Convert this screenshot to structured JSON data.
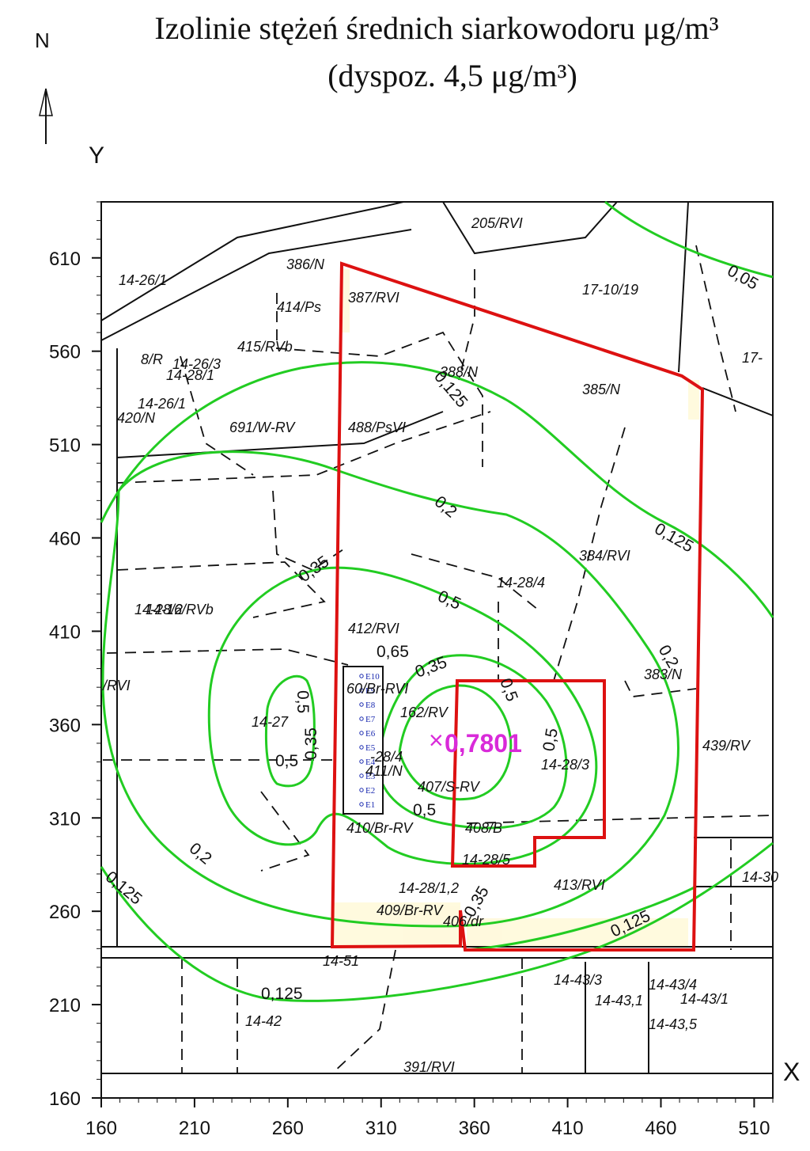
{
  "title": {
    "line1": "Izolinie stężeń średnich siarkowodoru μg/m³",
    "line2": "(dyspoz. 4,5 μg/m³)"
  },
  "north_label": "N",
  "axis": {
    "y_label": "Y",
    "x_label": "X",
    "x_ticks": [
      "160",
      "210",
      "260",
      "310",
      "360",
      "410",
      "460",
      "510"
    ],
    "y_ticks": [
      "610",
      "560",
      "510",
      "460",
      "410",
      "360",
      "310",
      "260",
      "210",
      "160"
    ],
    "x_range": [
      160,
      520
    ],
    "y_range": [
      160,
      640
    ]
  },
  "colors": {
    "isoline": "#22cc22",
    "boundary": "#dd1111",
    "peak": "#d92ad9",
    "emitters": "#1a2ab0"
  },
  "peak": {
    "label": "0,7801",
    "marker": "×",
    "x": 338,
    "y": 352
  },
  "contour_labels": [
    "0,05",
    "0,125",
    "0,2",
    "0,35",
    "0,5",
    "0,65",
    "0,35",
    "0,5",
    "0,5",
    "0,35",
    "0,5",
    "0,2",
    "0,125",
    "0,125",
    "0,125",
    "0,2",
    "0,125",
    "0,5",
    "0,5",
    "0,35"
  ],
  "parcels": [
    "205/RVI",
    "386/N",
    "414/Ps",
    "387/RVI",
    "17-10/19",
    "17-",
    "14-26/1",
    "415/RVb",
    "14-26/3",
    "14-28/1",
    "8/R",
    "14-26/1",
    "420/N",
    "691/W-RV",
    "488/PsVI",
    "388/N",
    "385/N",
    "384/RVI",
    "14-28/4",
    "14-16/RVb",
    "14-28/2",
    "412/RVI",
    "383/N",
    "/RVI",
    "14-27",
    "60/Br-RVI",
    "162/RV",
    "-28/4",
    "411/N",
    "407/S-RV",
    "14-28/3",
    "439/RV",
    "410/Br-RV",
    "408/B",
    "14-28/5",
    "413/RVI",
    "14-30",
    "14-28/1,2",
    "409/Br-RV",
    "406/dr",
    "14-51",
    "14-42",
    "391/RVI",
    "14-43/3",
    "14-43/4",
    "14-43/1",
    "14-43,5",
    "14-43,1"
  ],
  "emitters": [
    "E10",
    "E9",
    "E8",
    "E7",
    "E6",
    "E5",
    "E4",
    "E3",
    "E2",
    "E1"
  ]
}
